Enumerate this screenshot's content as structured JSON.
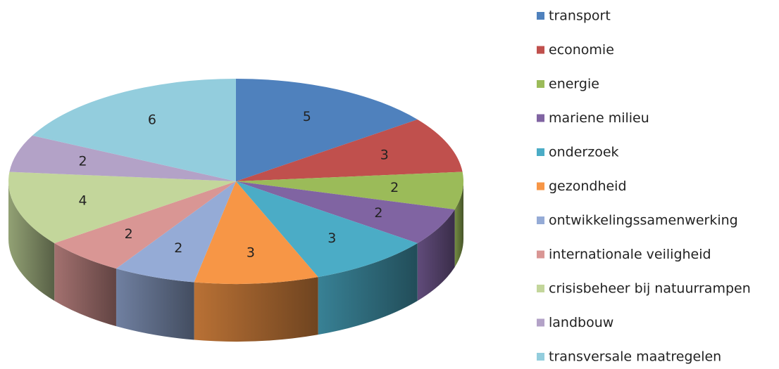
{
  "chart_data": {
    "type": "pie",
    "three_d": true,
    "categories": [
      "transport",
      "economie",
      "energie",
      "mariene milieu",
      "onderzoek",
      "gezondheid",
      "ontwikkelingssamenwerking",
      "internationale veiligheid",
      "crisisbeheer bij natuurrampen",
      "landbouw",
      "transversale maatregelen"
    ],
    "values": [
      5,
      3,
      2,
      2,
      3,
      3,
      2,
      2,
      4,
      2,
      6
    ],
    "colors": [
      "#4f81bd",
      "#c0504d",
      "#9bbb59",
      "#8064a2",
      "#4bacc6",
      "#f79646",
      "#95abd6",
      "#d99694",
      "#c3d69b",
      "#b3a2c7",
      "#93cddd"
    ],
    "legend": "right"
  }
}
